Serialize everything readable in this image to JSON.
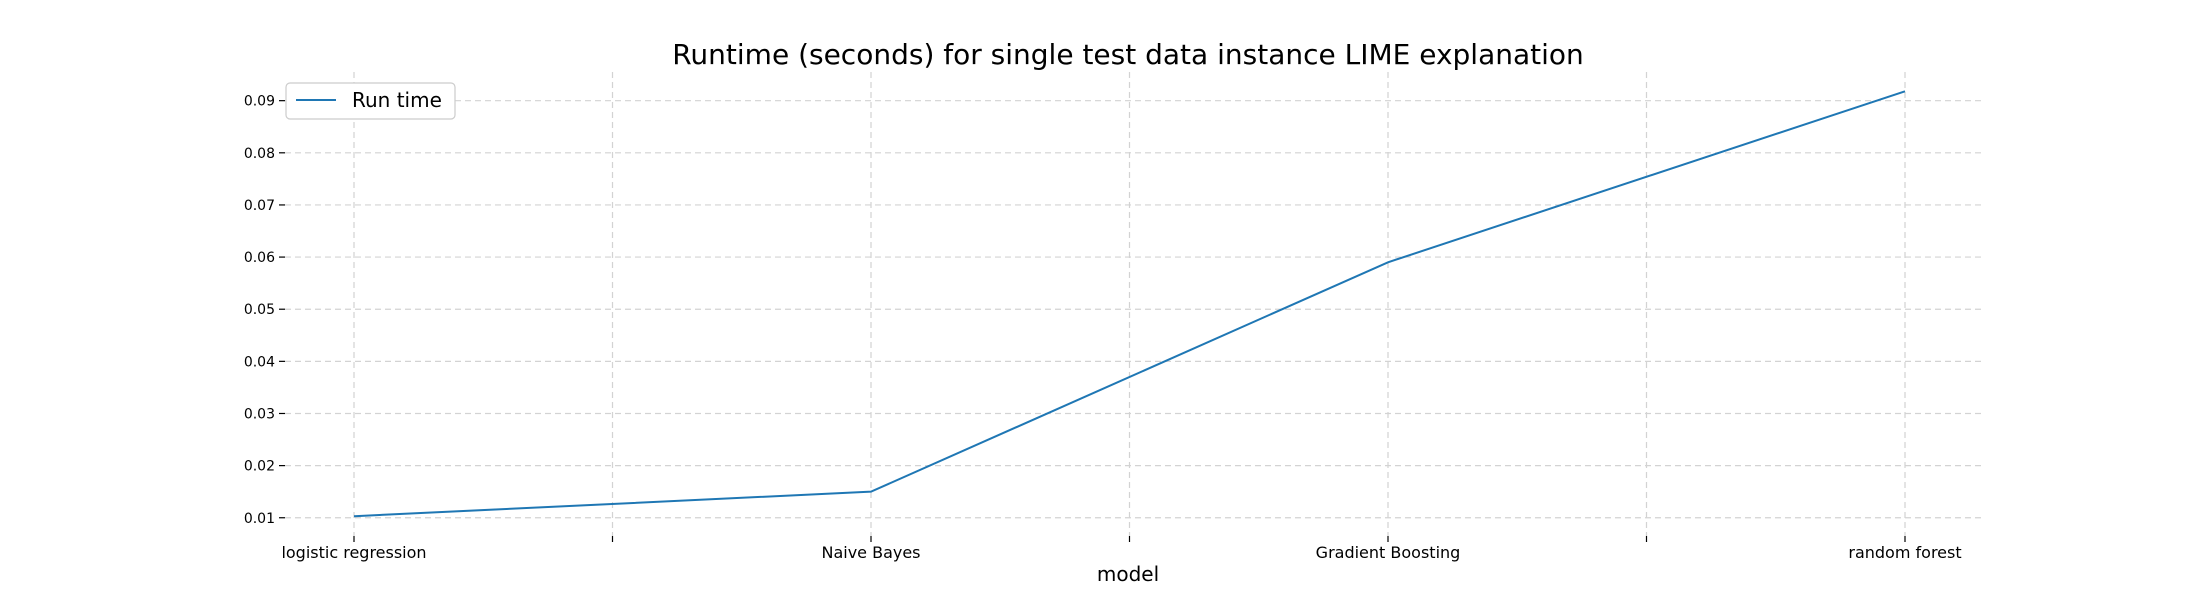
{
  "chart_data": {
    "type": "line",
    "title": "Runtime (seconds) for single test data instance LIME explanation",
    "xlabel": "model",
    "ylabel": "",
    "categories": [
      "logistic regression",
      "Naive Bayes",
      "Gradient Boosting",
      "random forest"
    ],
    "series": [
      {
        "name": "Run time",
        "values": [
          0.0103,
          0.015,
          0.059,
          0.0918
        ],
        "color": "#1f77b4"
      }
    ],
    "y_ticks": [
      "0.01",
      "0.02",
      "0.03",
      "0.04",
      "0.05",
      "0.06",
      "0.07",
      "0.08",
      "0.09"
    ],
    "ylim": [
      0.0065,
      0.0955
    ],
    "grid": true,
    "legend_position": "top-left"
  }
}
